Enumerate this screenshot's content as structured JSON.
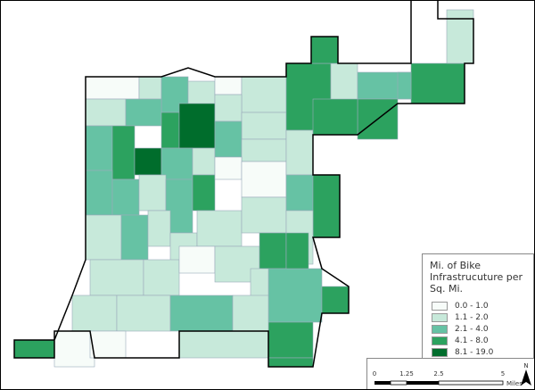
{
  "legend": {
    "title": "Mi. of Bike Infrastrucuture per Sq. Mi.",
    "entries": [
      {
        "label": "0.0 - 1.0",
        "color": "#f7fcf9"
      },
      {
        "label": "1.1 - 2.0",
        "color": "#c7e9da"
      },
      {
        "label": "2.1 - 4.0",
        "color": "#66c2a4"
      },
      {
        "label": "4.1 - 8.0",
        "color": "#2ca25f"
      },
      {
        "label": "8.1 - 19.0",
        "color": "#006d2c"
      }
    ]
  },
  "scale_bar": {
    "labels": [
      "0",
      "1.25",
      "2.5",
      "5"
    ],
    "unit": "Miles"
  },
  "north_arrow": "N"
}
